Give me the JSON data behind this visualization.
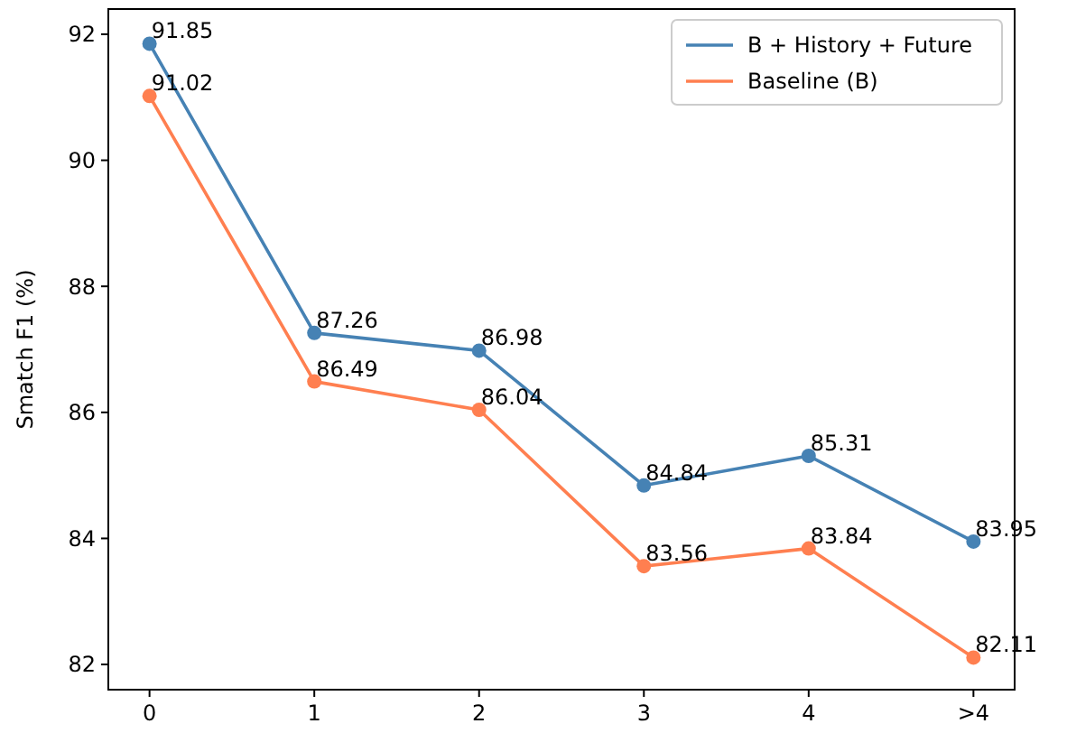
{
  "chart_data": {
    "type": "line",
    "ylabel": "Smatch F1 (%)",
    "categories": [
      "0",
      "1",
      "2",
      "3",
      "4",
      ">4"
    ],
    "series": [
      {
        "name": "B + History + Future",
        "color": "#4682b4",
        "values": [
          91.85,
          87.26,
          86.98,
          84.84,
          85.31,
          83.95
        ]
      },
      {
        "name": "Baseline (B)",
        "color": "#ff7f50",
        "values": [
          91.02,
          86.49,
          86.04,
          83.56,
          83.84,
          82.11
        ]
      }
    ],
    "ylim": [
      81.6,
      92.4
    ],
    "yticks": [
      82,
      84,
      86,
      88,
      90,
      92
    ],
    "marker": "circle",
    "data_labels": true,
    "legend": "top right",
    "grid": false
  }
}
